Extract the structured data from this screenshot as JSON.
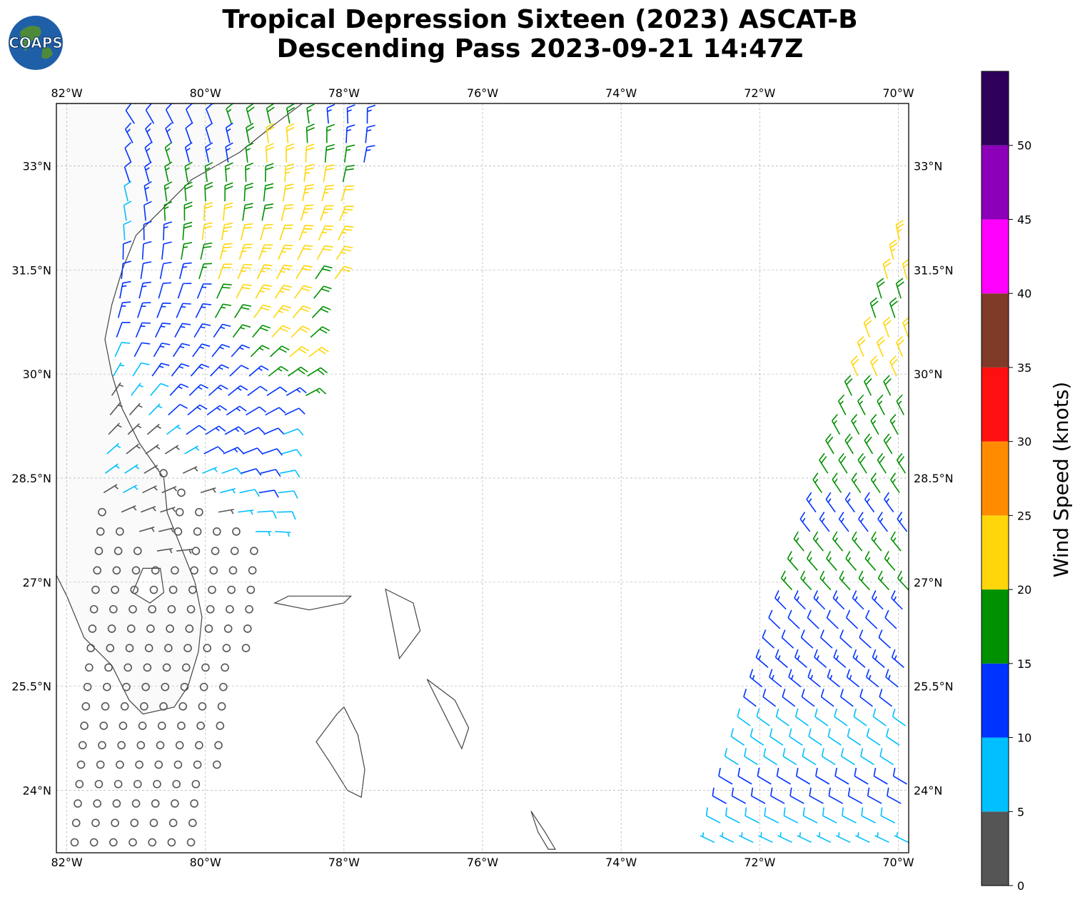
{
  "title": {
    "line1": "Tropical Depression Sixteen (2023) ASCAT-B",
    "line2": "Descending Pass 2023-09-21 14:47Z"
  },
  "logo": {
    "text": "COAPS",
    "icon": "globe-logo"
  },
  "axes": {
    "lon_ticks": [
      "82°W",
      "80°W",
      "78°W",
      "76°W",
      "74°W",
      "72°W",
      "70°W"
    ],
    "lat_ticks": [
      "33°N",
      "31.5°N",
      "30°N",
      "28.5°N",
      "27°N",
      "25.5°N",
      "24°N"
    ],
    "lon_range": [
      -82.15,
      -69.85
    ],
    "lat_range": [
      23.1,
      33.9
    ],
    "gridlines": true
  },
  "colorbar": {
    "label": "Wind Speed (knots)",
    "ticks": [
      "0",
      "5",
      "10",
      "15",
      "20",
      "25",
      "30",
      "35",
      "40",
      "45",
      "50"
    ],
    "bins": [
      {
        "min": 0,
        "max": 5,
        "color": "#555555"
      },
      {
        "min": 5,
        "max": 10,
        "color": "#00bfff"
      },
      {
        "min": 10,
        "max": 15,
        "color": "#0033ff"
      },
      {
        "min": 15,
        "max": 20,
        "color": "#009000"
      },
      {
        "min": 20,
        "max": 25,
        "color": "#ffd60a"
      },
      {
        "min": 25,
        "max": 30,
        "color": "#ff8c00"
      },
      {
        "min": 30,
        "max": 35,
        "color": "#ff1010"
      },
      {
        "min": 35,
        "max": 40,
        "color": "#7f3b28"
      },
      {
        "min": 40,
        "max": 45,
        "color": "#ff00ff"
      },
      {
        "min": 45,
        "max": 50,
        "color": "#8b00b8"
      },
      {
        "min": 50,
        "max": 55,
        "color": "#2e005c"
      }
    ]
  },
  "wind_swaths": [
    {
      "name": "west-swath",
      "lon_range": [
        -81.9,
        -77.6
      ],
      "lat_range": [
        23.1,
        33.9
      ]
    },
    {
      "name": "east-swath",
      "lon_range": [
        -72.7,
        -69.85
      ],
      "lat_range": [
        23.1,
        32.2
      ]
    }
  ]
}
